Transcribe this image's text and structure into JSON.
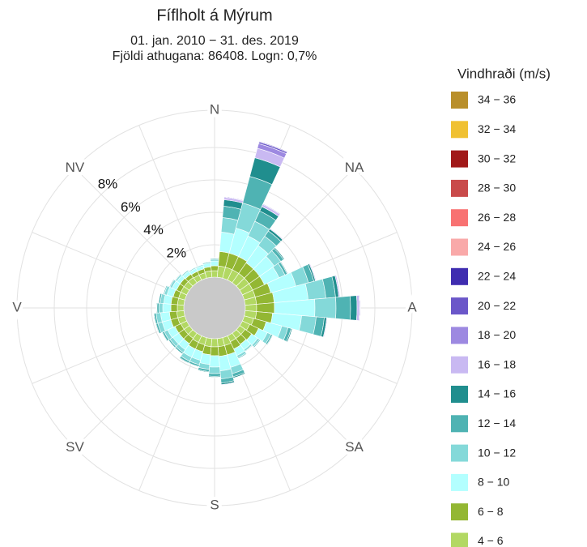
{
  "chart_data": {
    "type": "windrose",
    "title": "Fíflholt á Mýrum",
    "subtitle": [
      "01. jan. 2010 − 31. des. 2019",
      "Fjöldi athugana: 86408. Logn: 0,7%"
    ],
    "legend_title": "Vindhraði (m/s)",
    "direction_labels": [
      "N",
      "NA",
      "A",
      "SA",
      "S",
      "SV",
      "V",
      "NV"
    ],
    "categories": [
      null,
      null,
      null,
      null,
      null,
      null,
      null,
      null,
      null,
      null,
      null,
      null,
      null,
      null,
      null,
      null,
      null,
      null,
      null,
      null,
      null,
      null,
      null,
      null,
      null,
      null,
      null,
      null,
      null,
      null,
      null,
      null,
      null,
      null,
      null,
      null
    ],
    "ylim": [
      0,
      10.3
    ],
    "yticks": [
      {
        "value": 2,
        "label": "2%"
      },
      {
        "value": 4,
        "label": "4%"
      },
      {
        "value": 6,
        "label": "6%"
      },
      {
        "value": 8,
        "label": "8%"
      }
    ],
    "grid": true,
    "hole_color": "#c9c9c9",
    "series": [
      {
        "name": "4 − 6",
        "color": "#b2d863",
        "values": [
          0.4,
          0.7,
          0.7,
          0.7,
          0.7,
          0.7,
          0.7,
          0.7,
          0.7,
          0.7,
          0.7,
          0.6,
          0.5,
          0.4,
          0.4,
          0.4,
          0.5,
          0.5,
          0.5,
          0.5,
          0.45,
          0.45,
          0.4,
          0.4,
          0.4,
          0.45,
          0.45,
          0.4,
          0.4,
          0.4,
          0.4,
          0.4,
          0.4,
          0.35,
          0.35,
          0.4
        ]
      },
      {
        "name": "6 − 8",
        "color": "#93b733",
        "values": [
          0.3,
          0.9,
          0.9,
          0.9,
          0.8,
          0.8,
          0.8,
          1.0,
          1.1,
          1.1,
          1.0,
          0.8,
          0.6,
          0.5,
          0.45,
          0.5,
          0.6,
          0.6,
          0.55,
          0.5,
          0.45,
          0.45,
          0.4,
          0.4,
          0.4,
          0.45,
          0.45,
          0.4,
          0.4,
          0.35,
          0.3,
          0.3,
          0.25,
          0.25,
          0.25,
          0.25
        ]
      },
      {
        "name": "8 − 10",
        "color": "#b3ffff",
        "values": [
          0.3,
          1.2,
          1.6,
          1.4,
          1.3,
          1.1,
          1.0,
          1.6,
          2.1,
          2.5,
          1.8,
          1.0,
          0.6,
          0.45,
          0.4,
          0.45,
          0.8,
          0.9,
          0.7,
          0.6,
          0.55,
          0.55,
          0.45,
          0.45,
          0.5,
          0.55,
          0.55,
          0.5,
          0.45,
          0.4,
          0.3,
          0.25,
          0.23,
          0.2,
          0.2,
          0.23
        ]
      },
      {
        "name": "10 − 12",
        "color": "#84d9d9",
        "values": [
          0.1,
          0.9,
          1.6,
          1.0,
          0.7,
          0.5,
          0.4,
          0.8,
          1.1,
          1.3,
          0.9,
          0.4,
          0.25,
          0.15,
          0.12,
          0.15,
          0.4,
          0.5,
          0.4,
          0.3,
          0.28,
          0.28,
          0.22,
          0.22,
          0.24,
          0.28,
          0.28,
          0.24,
          0.22,
          0.17,
          0.14,
          0.1,
          0.08,
          0.07,
          0.07,
          0.08
        ]
      },
      {
        "name": "12 − 14",
        "color": "#4fb3b3",
        "values": [
          0.06,
          0.7,
          1.7,
          0.7,
          0.4,
          0.2,
          0.15,
          0.35,
          0.6,
          0.9,
          0.5,
          0.2,
          0.1,
          0.06,
          0.04,
          0.06,
          0.2,
          0.25,
          0.17,
          0.14,
          0.12,
          0.12,
          0.1,
          0.1,
          0.12,
          0.12,
          0.12,
          0.12,
          0.1,
          0.06,
          0.05,
          0.04,
          0.03,
          0.02,
          0.02,
          0.03
        ]
      },
      {
        "name": "14 − 16",
        "color": "#208e8e",
        "values": [
          0.03,
          0.4,
          1.2,
          0.3,
          0.15,
          0.07,
          0.05,
          0.1,
          0.2,
          0.4,
          0.15,
          0.07,
          0.04,
          0.02,
          0.01,
          0.02,
          0.08,
          0.1,
          0.06,
          0.05,
          0.04,
          0.04,
          0.03,
          0.03,
          0.04,
          0.04,
          0.04,
          0.04,
          0.03,
          0.02,
          0.01,
          0.01,
          0.01,
          0.01,
          0.01,
          0.01
        ]
      },
      {
        "name": "16 − 18",
        "color": "#c9b9f2",
        "values": [
          0.01,
          0.15,
          0.6,
          0.15,
          0.05,
          0.03,
          0.02,
          0.05,
          0.08,
          0.15,
          0.05,
          0.03,
          0.01,
          0,
          0,
          0,
          0.02,
          0.04,
          0.02,
          0.02,
          0.01,
          0.01,
          0.01,
          0.01,
          0.01,
          0.01,
          0.01,
          0.01,
          0.01,
          0,
          0,
          0,
          0,
          0,
          0,
          0
        ]
      },
      {
        "name": "18 − 20",
        "color": "#9d89e1",
        "values": [
          0,
          0.05,
          0.3,
          0.05,
          0.02,
          0.01,
          0.01,
          0.02,
          0.03,
          0.05,
          0.02,
          0,
          0,
          0,
          0,
          0,
          0,
          0.01,
          0,
          0,
          0,
          0,
          0,
          0,
          0,
          0,
          0,
          0,
          0,
          0,
          0,
          0,
          0,
          0,
          0,
          0
        ]
      },
      {
        "name": "20 − 22",
        "color": "#6b57c9",
        "values": [
          0,
          0,
          0.1,
          0,
          0,
          0,
          0,
          0,
          0,
          0,
          0,
          0,
          0,
          0,
          0,
          0,
          0,
          0,
          0,
          0,
          0,
          0,
          0,
          0,
          0,
          0,
          0,
          0,
          0,
          0,
          0,
          0,
          0,
          0,
          0,
          0
        ]
      },
      {
        "name": "22 − 24",
        "color": "#3f2db0",
        "values": [
          0,
          0,
          0.05,
          0,
          0,
          0,
          0,
          0,
          0,
          0,
          0,
          0,
          0,
          0,
          0,
          0,
          0,
          0,
          0,
          0,
          0,
          0,
          0,
          0,
          0,
          0,
          0,
          0,
          0,
          0,
          0,
          0,
          0,
          0,
          0,
          0
        ]
      },
      {
        "name": "24 − 26",
        "color": "#f9a9a9",
        "values": [
          0,
          0,
          0,
          0,
          0,
          0,
          0,
          0,
          0,
          0,
          0,
          0,
          0,
          0,
          0,
          0,
          0,
          0,
          0,
          0,
          0,
          0,
          0,
          0,
          0,
          0,
          0,
          0,
          0,
          0,
          0,
          0,
          0,
          0,
          0,
          0
        ]
      },
      {
        "name": "26 − 28",
        "color": "#f87272",
        "values": [
          0,
          0,
          0,
          0,
          0,
          0,
          0,
          0,
          0,
          0,
          0,
          0,
          0,
          0,
          0,
          0,
          0,
          0,
          0,
          0,
          0,
          0,
          0,
          0,
          0,
          0,
          0,
          0,
          0,
          0,
          0,
          0,
          0,
          0,
          0,
          0
        ]
      },
      {
        "name": "28 − 30",
        "color": "#c94a4a",
        "values": [
          0,
          0,
          0,
          0,
          0,
          0,
          0,
          0,
          0,
          0,
          0,
          0,
          0,
          0,
          0,
          0,
          0,
          0,
          0,
          0,
          0,
          0,
          0,
          0,
          0,
          0,
          0,
          0,
          0,
          0,
          0,
          0,
          0,
          0,
          0,
          0
        ]
      },
      {
        "name": "30 − 32",
        "color": "#a11919",
        "values": [
          0,
          0,
          0,
          0,
          0,
          0,
          0,
          0,
          0,
          0,
          0,
          0,
          0,
          0,
          0,
          0,
          0,
          0,
          0,
          0,
          0,
          0,
          0,
          0,
          0,
          0,
          0,
          0,
          0,
          0,
          0,
          0,
          0,
          0,
          0,
          0
        ]
      },
      {
        "name": "32 − 34",
        "color": "#f0c132",
        "values": [
          0,
          0,
          0,
          0,
          0,
          0,
          0,
          0,
          0,
          0,
          0,
          0,
          0,
          0,
          0,
          0,
          0,
          0,
          0,
          0,
          0,
          0,
          0,
          0,
          0,
          0,
          0,
          0,
          0,
          0,
          0,
          0,
          0,
          0,
          0,
          0
        ]
      },
      {
        "name": "34 − 36",
        "color": "#b98f2a",
        "values": [
          0,
          0,
          0,
          0,
          0,
          0,
          0,
          0,
          0,
          0,
          0,
          0,
          0,
          0,
          0,
          0,
          0,
          0,
          0,
          0,
          0,
          0,
          0,
          0,
          0,
          0,
          0,
          0,
          0,
          0,
          0,
          0,
          0,
          0,
          0,
          0
        ]
      }
    ]
  }
}
